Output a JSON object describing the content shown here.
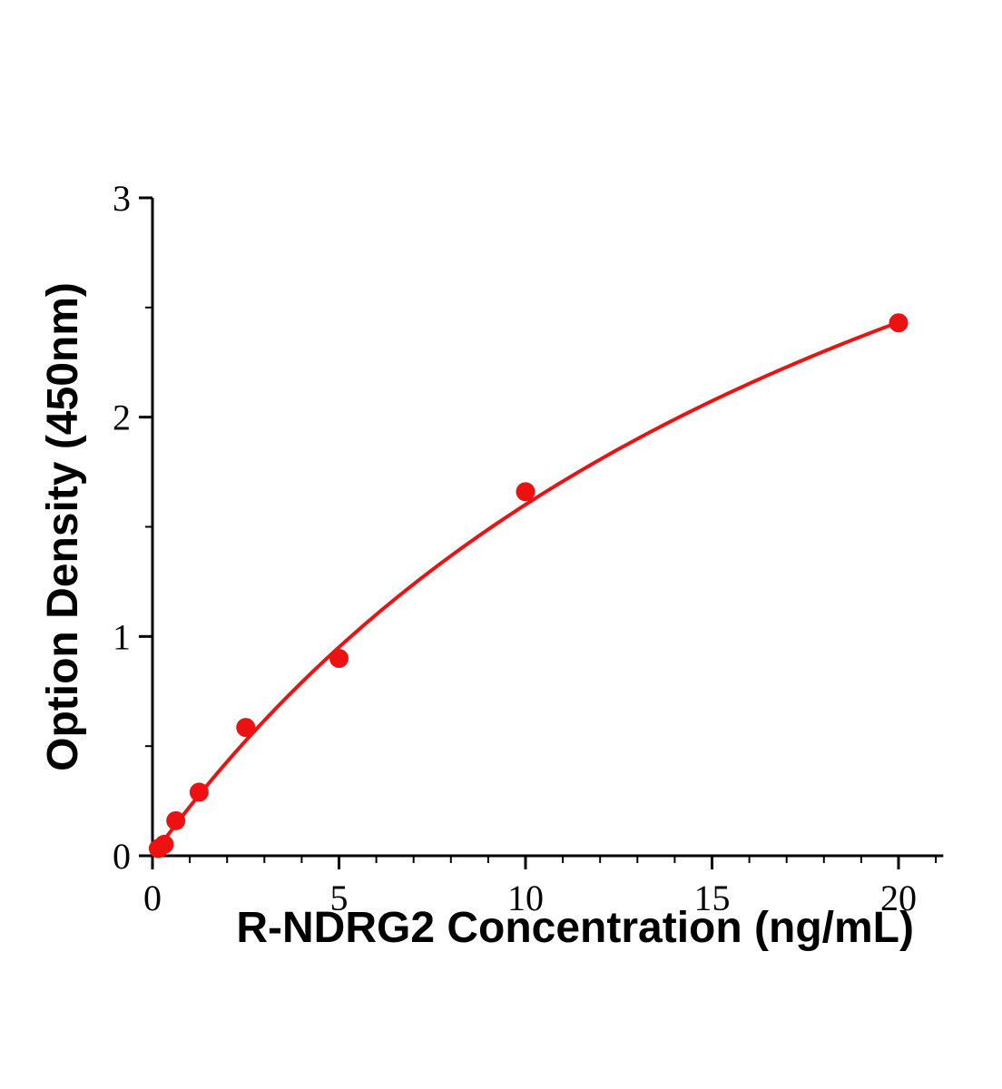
{
  "chart_data": {
    "type": "scatter",
    "title": "",
    "xlabel": "R-NDRG2 Concentration (ng/mL)",
    "ylabel": "Option Density (450nm)",
    "xlim": [
      0,
      21.2
    ],
    "ylim": [
      0,
      3
    ],
    "x_ticks": [
      0,
      5,
      10,
      15,
      20
    ],
    "y_ticks": [
      0,
      1,
      2,
      3
    ],
    "x_minor_step": 1,
    "y_minor_step": 0.5,
    "points": [
      {
        "x": 0.156,
        "y": 0.033
      },
      {
        "x": 0.313,
        "y": 0.052
      },
      {
        "x": 0.625,
        "y": 0.16
      },
      {
        "x": 1.25,
        "y": 0.29
      },
      {
        "x": 2.5,
        "y": 0.585
      },
      {
        "x": 5,
        "y": 0.9
      },
      {
        "x": 10,
        "y": 1.66
      },
      {
        "x": 20,
        "y": 2.43
      }
    ],
    "fit": {
      "type": "michaelis_menten",
      "vmax": 5.06,
      "km": 21.6
    },
    "curve_x_range": [
      0.156,
      20
    ],
    "marker_color": "#ee1111",
    "line_color": "#ee1111",
    "axis_color": "#000000",
    "legend": "none",
    "grid": "off"
  }
}
